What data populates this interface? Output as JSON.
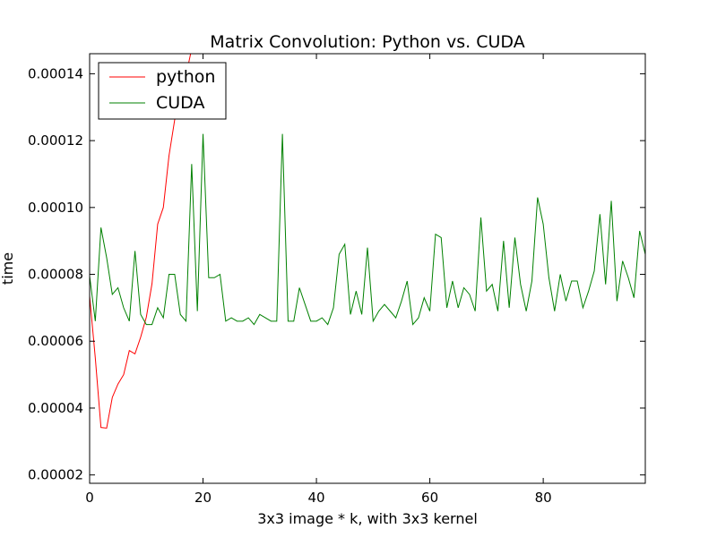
{
  "chart_data": {
    "type": "line",
    "title": "Matrix Convolution: Python vs. CUDA",
    "xlabel": "3x3 image * k, with 3x3 kernel",
    "ylabel": "time",
    "xlim": [
      0,
      98
    ],
    "ylim": [
      1.75e-05,
      0.000146
    ],
    "xticks": [
      0,
      20,
      40,
      60,
      80
    ],
    "xtick_labels": [
      "0",
      "20",
      "40",
      "60",
      "80"
    ],
    "yticks": [
      2e-05,
      4e-05,
      6e-05,
      8e-05,
      0.0001,
      0.00012,
      0.00014
    ],
    "ytick_labels": [
      "0.00002",
      "0.00004",
      "0.00006",
      "0.00008",
      "0.00010",
      "0.00012",
      "0.00014"
    ],
    "grid": false,
    "legend_position": "top-left",
    "series": [
      {
        "name": "python",
        "color": "#ff0000",
        "x": [
          0,
          1,
          2,
          3,
          4,
          5,
          6,
          7,
          8,
          9,
          10,
          11,
          12,
          13,
          14,
          15,
          16,
          17,
          18
        ],
        "values": [
          7.35e-05,
          5.5e-05,
          3.42e-05,
          3.4e-05,
          4.32e-05,
          4.72e-05,
          5e-05,
          5.72e-05,
          5.62e-05,
          6.12e-05,
          6.72e-05,
          7.72e-05,
          9.5e-05,
          0.0001,
          0.0001155,
          0.0001262,
          0.000133,
          0.0001395,
          0.0001475
        ]
      },
      {
        "name": "CUDA",
        "color": "#008000",
        "x": [
          0,
          1,
          2,
          3,
          4,
          5,
          6,
          7,
          8,
          9,
          10,
          11,
          12,
          13,
          14,
          15,
          16,
          17,
          18,
          19,
          20,
          21,
          22,
          23,
          24,
          25,
          26,
          27,
          28,
          29,
          30,
          31,
          32,
          33,
          34,
          35,
          36,
          37,
          38,
          39,
          40,
          41,
          42,
          43,
          44,
          45,
          46,
          47,
          48,
          49,
          50,
          51,
          52,
          53,
          54,
          55,
          56,
          57,
          58,
          59,
          60,
          61,
          62,
          63,
          64,
          65,
          66,
          67,
          68,
          69,
          70,
          71,
          72,
          73,
          74,
          75,
          76,
          77,
          78,
          79,
          80,
          81,
          82,
          83,
          84,
          85,
          86,
          87,
          88,
          89,
          90,
          91,
          92,
          93,
          94,
          95,
          96,
          97,
          98
        ],
        "values": [
          7.95e-05,
          6.6e-05,
          9.4e-05,
          8.5e-05,
          7.4e-05,
          7.6e-05,
          7e-05,
          6.6e-05,
          8.7e-05,
          6.8e-05,
          6.5e-05,
          6.5e-05,
          7e-05,
          6.7e-05,
          8e-05,
          8e-05,
          6.8e-05,
          6.6e-05,
          0.000113,
          6.9e-05,
          0.000122,
          7.9e-05,
          7.9e-05,
          8e-05,
          6.6e-05,
          6.7e-05,
          6.6e-05,
          6.6e-05,
          6.7e-05,
          6.5e-05,
          6.8e-05,
          6.7e-05,
          6.6e-05,
          6.6e-05,
          0.000122,
          6.6e-05,
          6.6e-05,
          7.6e-05,
          7.1e-05,
          6.6e-05,
          6.6e-05,
          6.7e-05,
          6.5e-05,
          7e-05,
          8.6e-05,
          8.9e-05,
          6.8e-05,
          7.5e-05,
          6.8e-05,
          8.8e-05,
          6.6e-05,
          6.9e-05,
          7.1e-05,
          6.9e-05,
          6.7e-05,
          7.2e-05,
          7.8e-05,
          6.5e-05,
          6.7e-05,
          7.3e-05,
          6.9e-05,
          9.2e-05,
          9.1e-05,
          7e-05,
          7.8e-05,
          7e-05,
          7.6e-05,
          7.4e-05,
          6.9e-05,
          9.7e-05,
          7.5e-05,
          7.7e-05,
          6.9e-05,
          9e-05,
          7e-05,
          9.1e-05,
          7.7e-05,
          6.9e-05,
          7.8e-05,
          0.000103,
          9.5e-05,
          7.9e-05,
          6.9e-05,
          8e-05,
          7.2e-05,
          7.8e-05,
          7.8e-05,
          7e-05,
          7.5e-05,
          8.1e-05,
          9.8e-05,
          7.7e-05,
          0.000102,
          7.2e-05,
          8.4e-05,
          7.9e-05,
          7.3e-05,
          9.3e-05,
          8.6e-05
        ]
      }
    ]
  }
}
